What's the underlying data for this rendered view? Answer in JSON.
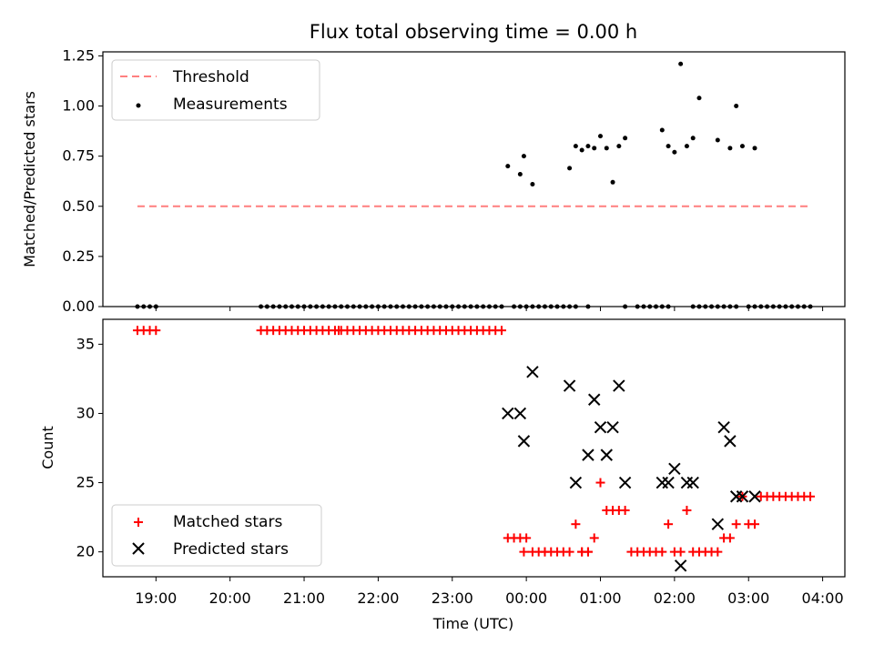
{
  "chart_data": [
    {
      "type": "scatter",
      "title": "Flux total observing time = 0.00 h",
      "xlabel": "",
      "ylabel": "Matched/Predicted stars",
      "ylim": [
        0.0,
        1.27
      ],
      "yticks": [
        "0.00",
        "0.25",
        "0.50",
        "0.75",
        "1.00",
        "1.25"
      ],
      "xlim": [
        "18:17",
        "04:18"
      ],
      "grid": false,
      "legend_position": "top-left",
      "series": [
        {
          "name": "Threshold",
          "style": "dashed-line",
          "color": "#ff7f7f",
          "x": [
            "18:45",
            "03:50"
          ],
          "y": [
            0.5,
            0.5
          ]
        },
        {
          "name": "Measurements",
          "style": "dots",
          "color": "#000000",
          "x": [
            "18:45",
            "18:50",
            "18:55",
            "19:00",
            "20:25",
            "20:30",
            "20:35",
            "20:40",
            "20:45",
            "20:50",
            "20:55",
            "21:00",
            "21:05",
            "21:10",
            "21:15",
            "21:20",
            "21:25",
            "21:30",
            "21:35",
            "21:40",
            "21:45",
            "21:50",
            "21:55",
            "22:00",
            "22:05",
            "22:10",
            "22:15",
            "22:20",
            "22:25",
            "22:30",
            "22:35",
            "22:40",
            "22:45",
            "22:50",
            "22:55",
            "23:00",
            "23:05",
            "23:10",
            "23:15",
            "23:20",
            "23:25",
            "23:30",
            "23:35",
            "23:40",
            "23:50",
            "23:55",
            "00:00",
            "00:05",
            "00:10",
            "00:15",
            "00:20",
            "00:25",
            "00:30",
            "00:35",
            "00:40",
            "00:50",
            "01:20",
            "01:30",
            "01:35",
            "01:40",
            "01:45",
            "01:50",
            "01:55",
            "02:15",
            "02:20",
            "02:25",
            "02:30",
            "02:35",
            "02:40",
            "02:45",
            "02:50",
            "03:00",
            "03:05",
            "03:10",
            "03:15",
            "03:20",
            "03:25",
            "03:30",
            "03:35",
            "03:40",
            "03:45",
            "03:50",
            "23:45",
            "23:55",
            "23:58",
            "00:05",
            "00:35",
            "00:40",
            "00:45",
            "00:50",
            "00:55",
            "01:00",
            "01:05",
            "01:10",
            "01:15",
            "01:20",
            "01:50",
            "01:55",
            "02:00",
            "02:05",
            "02:10",
            "02:15",
            "02:20",
            "02:35",
            "02:45",
            "02:50",
            "02:55",
            "03:05"
          ],
          "y": [
            0,
            0,
            0,
            0,
            0,
            0,
            0,
            0,
            0,
            0,
            0,
            0,
            0,
            0,
            0,
            0,
            0,
            0,
            0,
            0,
            0,
            0,
            0,
            0,
            0,
            0,
            0,
            0,
            0,
            0,
            0,
            0,
            0,
            0,
            0,
            0,
            0,
            0,
            0,
            0,
            0,
            0,
            0,
            0,
            0,
            0,
            0,
            0,
            0,
            0,
            0,
            0,
            0,
            0,
            0,
            0,
            0,
            0,
            0,
            0,
            0,
            0,
            0,
            0,
            0,
            0,
            0,
            0,
            0,
            0,
            0,
            0,
            0,
            0,
            0,
            0,
            0,
            0,
            0,
            0,
            0,
            0,
            0.7,
            0.66,
            0.75,
            0.61,
            0.69,
            0.8,
            0.78,
            0.8,
            0.79,
            0.85,
            0.79,
            0.62,
            0.8,
            0.84,
            0.88,
            0.8,
            0.77,
            1.21,
            0.8,
            0.84,
            1.04,
            0.83,
            0.79,
            1.0,
            0.8,
            0.79
          ]
        }
      ]
    },
    {
      "type": "scatter",
      "title": "",
      "xlabel": "Time (UTC)",
      "ylabel": "Count",
      "ylim": [
        18.2,
        36.8
      ],
      "yticks": [
        "20",
        "25",
        "30",
        "35"
      ],
      "xlim": [
        "18:17",
        "04:18"
      ],
      "xticks": [
        "19:00",
        "20:00",
        "21:00",
        "22:00",
        "23:00",
        "00:00",
        "01:00",
        "02:00",
        "03:00",
        "04:00"
      ],
      "grid": false,
      "legend_position": "bottom-left",
      "series": [
        {
          "name": "Matched stars",
          "style": "plus",
          "color": "#ff0000",
          "x": [
            "18:45",
            "18:50",
            "18:55",
            "19:00",
            "20:25",
            "20:30",
            "20:35",
            "20:40",
            "20:45",
            "20:50",
            "20:55",
            "21:00",
            "21:05",
            "21:10",
            "21:15",
            "21:20",
            "21:25",
            "21:28",
            "21:30",
            "21:35",
            "21:40",
            "21:45",
            "21:50",
            "21:55",
            "22:00",
            "22:05",
            "22:10",
            "22:15",
            "22:20",
            "22:25",
            "22:30",
            "22:35",
            "22:40",
            "22:45",
            "22:50",
            "22:55",
            "23:00",
            "23:05",
            "23:10",
            "23:15",
            "23:20",
            "23:25",
            "23:30",
            "23:35",
            "23:40",
            "23:45",
            "23:50",
            "23:55",
            "00:00",
            "23:58",
            "00:05",
            "00:10",
            "00:15",
            "00:20",
            "00:25",
            "00:30",
            "00:35",
            "00:40",
            "00:45",
            "00:50",
            "00:55",
            "01:00",
            "01:05",
            "01:10",
            "01:15",
            "01:20",
            "01:25",
            "01:30",
            "01:35",
            "01:40",
            "01:45",
            "01:50",
            "01:55",
            "02:00",
            "02:05",
            "02:10",
            "02:15",
            "02:20",
            "02:25",
            "02:30",
            "02:35",
            "02:40",
            "02:45",
            "02:50",
            "02:55",
            "03:00",
            "03:05",
            "03:10",
            "03:15",
            "03:20",
            "03:25",
            "03:30",
            "03:35",
            "03:40",
            "03:45",
            "03:50",
            "00:15",
            "00:45",
            "00:50"
          ],
          "y": [
            36,
            36,
            36,
            36,
            36,
            36,
            36,
            36,
            36,
            36,
            36,
            36,
            36,
            36,
            36,
            36,
            36,
            36,
            36,
            36,
            36,
            36,
            36,
            36,
            36,
            36,
            36,
            36,
            36,
            36,
            36,
            36,
            36,
            36,
            36,
            36,
            36,
            36,
            36,
            36,
            36,
            36,
            36,
            36,
            36,
            21,
            21,
            21,
            21,
            20,
            20,
            20,
            20,
            20,
            20,
            20,
            20,
            22,
            20,
            20,
            21,
            25,
            23,
            23,
            23,
            23,
            20,
            20,
            20,
            20,
            20,
            20,
            22,
            20,
            20,
            23,
            20,
            20,
            20,
            20,
            20,
            21,
            21,
            22,
            24,
            22,
            22,
            24,
            24,
            24,
            24,
            24,
            24,
            24,
            24,
            24,
            20,
            20,
            20
          ]
        },
        {
          "name": "Predicted stars",
          "style": "x",
          "color": "#000000",
          "x": [
            "23:45",
            "23:55",
            "23:58",
            "00:05",
            "00:35",
            "00:40",
            "00:50",
            "00:55",
            "01:00",
            "01:05",
            "01:10",
            "01:15",
            "01:20",
            "01:50",
            "01:55",
            "02:00",
            "02:05",
            "02:10",
            "02:15",
            "02:35",
            "02:40",
            "02:45",
            "02:50",
            "02:55",
            "03:05"
          ],
          "y": [
            30,
            30,
            28,
            33,
            32,
            25,
            27,
            31,
            29,
            27,
            29,
            32,
            25,
            25,
            25,
            26,
            19,
            25,
            25,
            22,
            29,
            28,
            24,
            24,
            24
          ]
        }
      ]
    }
  ]
}
